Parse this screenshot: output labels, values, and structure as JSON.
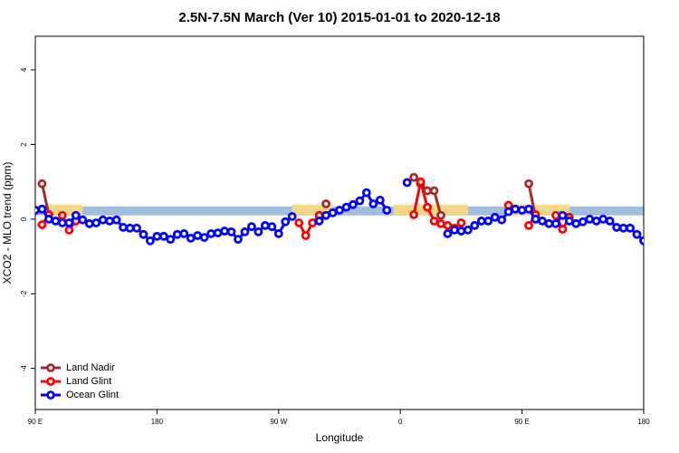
{
  "chart_data": {
    "type": "line",
    "title": "2.5N-7.5N March (Ver 10)   2015-01-01 to 2020-12-18",
    "x_label": "Longitude",
    "y_label": "XCO2 - MLO trend (ppm)",
    "xlim": [
      90,
      540
    ],
    "ylim": [
      -5.1,
      4.9
    ],
    "xticks": [
      {
        "value": 90,
        "label": "90 E"
      },
      {
        "value": 180,
        "label": "180"
      },
      {
        "value": 270,
        "label": "90 W"
      },
      {
        "value": 360,
        "label": "0"
      },
      {
        "value": 450,
        "label": "90 E"
      },
      {
        "value": 540,
        "label": "180"
      }
    ],
    "yticks": [
      -4,
      -2,
      0,
      2,
      4
    ],
    "band": [
      0.1,
      0.34
    ],
    "band_color": "#a3bde0",
    "land_ranges": [
      [
        95,
        125
      ],
      [
        280,
        310
      ],
      [
        355,
        410
      ],
      [
        440,
        485
      ]
    ],
    "land_color": "#f9d77e",
    "legend": "bottom-left",
    "series": [
      {
        "name": "Land Nadir",
        "color": "#a52a2a",
        "x": [
          95,
          100,
          105,
          305,
          310,
          370,
          375,
          380,
          385,
          390,
          395,
          455,
          460
        ],
        "values": [
          0.95,
          0.12,
          null,
          0.41,
          null,
          1.12,
          0.95,
          0.76,
          0.76,
          0.1,
          null,
          0.95,
          0.05
        ]
      },
      {
        "name": "Land Glint",
        "color": "#ff0000",
        "x": [
          95,
          100,
          105,
          110,
          115,
          120,
          125,
          285,
          290,
          295,
          300,
          305,
          370,
          375,
          380,
          385,
          390,
          395,
          400,
          405,
          410,
          440,
          445,
          455,
          460,
          465,
          475,
          480,
          485
        ],
        "values": [
          -0.15,
          0.12,
          null,
          0.1,
          -0.29,
          -0.05,
          null,
          -0.1,
          -0.44,
          -0.1,
          0.1,
          null,
          0.12,
          1.0,
          0.32,
          -0.05,
          -0.12,
          -0.17,
          -0.24,
          -0.1,
          null,
          0.37,
          null,
          -0.17,
          0.12,
          null,
          0.1,
          -0.27,
          0.05
        ]
      },
      {
        "name": "Ocean Glint",
        "color": "#0000ff",
        "x": [
          90,
          95,
          100,
          105,
          110,
          115,
          120,
          125,
          130,
          135,
          140,
          145,
          150,
          155,
          160,
          165,
          170,
          175,
          180,
          185,
          190,
          195,
          200,
          205,
          210,
          215,
          220,
          225,
          230,
          235,
          240,
          245,
          250,
          255,
          260,
          265,
          270,
          275,
          280,
          285,
          290,
          295,
          300,
          305,
          310,
          315,
          320,
          325,
          330,
          335,
          340,
          345,
          350,
          355,
          360,
          365,
          370,
          375,
          380,
          385,
          390,
          395,
          400,
          405,
          410,
          415,
          420,
          425,
          430,
          435,
          440,
          445,
          450,
          455,
          460,
          465,
          470,
          475,
          480,
          485,
          490,
          495,
          500,
          505,
          510,
          515,
          520,
          525,
          530,
          535,
          540
        ],
        "values": [
          0.24,
          0.27,
          0.0,
          -0.05,
          -0.1,
          -0.1,
          0.1,
          -0.02,
          -0.12,
          -0.1,
          -0.02,
          -0.05,
          -0.02,
          -0.22,
          -0.24,
          -0.24,
          -0.41,
          -0.58,
          -0.46,
          -0.46,
          -0.54,
          -0.41,
          -0.39,
          -0.51,
          -0.44,
          -0.49,
          -0.39,
          -0.37,
          -0.32,
          -0.34,
          -0.54,
          -0.34,
          -0.2,
          -0.34,
          -0.17,
          -0.2,
          -0.39,
          -0.07,
          0.07,
          null,
          null,
          null,
          -0.05,
          0.1,
          0.17,
          0.24,
          0.32,
          0.39,
          0.49,
          0.71,
          0.41,
          0.51,
          0.24,
          null,
          null,
          0.98,
          null,
          null,
          null,
          null,
          null,
          -0.39,
          -0.29,
          -0.32,
          -0.29,
          -0.17,
          -0.05,
          -0.05,
          0.05,
          -0.02,
          0.2,
          0.27,
          0.24,
          0.27,
          0.0,
          -0.05,
          -0.12,
          -0.12,
          0.1,
          -0.05,
          -0.12,
          -0.07,
          0.0,
          -0.05,
          0.0,
          -0.05,
          -0.22,
          -0.24,
          -0.24,
          -0.41,
          -0.58
        ]
      }
    ]
  }
}
